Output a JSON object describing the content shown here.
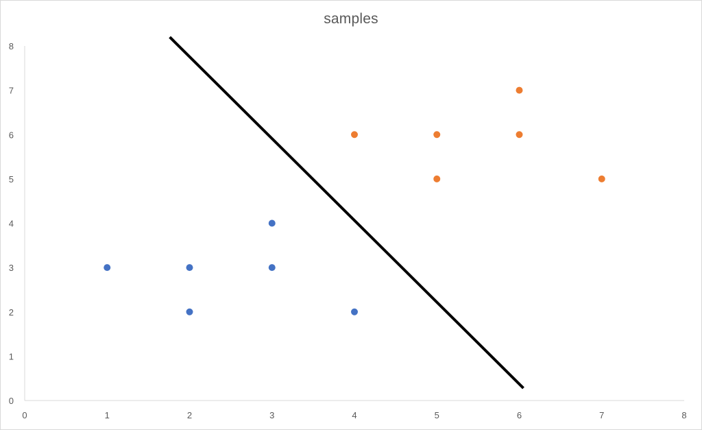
{
  "chart_data": {
    "type": "scatter",
    "title": "samples",
    "xlabel": "",
    "ylabel": "",
    "xlim": [
      0,
      8
    ],
    "ylim": [
      0,
      8
    ],
    "x_ticks": [
      "0",
      "1",
      "2",
      "3",
      "4",
      "5",
      "6",
      "7",
      "8"
    ],
    "y_ticks": [
      "0",
      "1",
      "2",
      "3",
      "4",
      "5",
      "6",
      "7",
      "8"
    ],
    "grid": false,
    "legend": "none",
    "series": [
      {
        "color": "#4472C4",
        "points": [
          [
            1,
            3
          ],
          [
            2,
            3
          ],
          [
            2,
            2
          ],
          [
            3,
            4
          ],
          [
            3,
            3
          ],
          [
            4,
            2
          ]
        ]
      },
      {
        "color": "#ED7D31",
        "points": [
          [
            4,
            6
          ],
          [
            5,
            6
          ],
          [
            5,
            5
          ],
          [
            6,
            7
          ],
          [
            6,
            6
          ],
          [
            7,
            5
          ]
        ]
      }
    ],
    "annotations": [
      {
        "type": "line",
        "color": "#000000",
        "from": [
          1.76,
          8.2
        ],
        "to": [
          6.05,
          0.28
        ]
      }
    ]
  }
}
